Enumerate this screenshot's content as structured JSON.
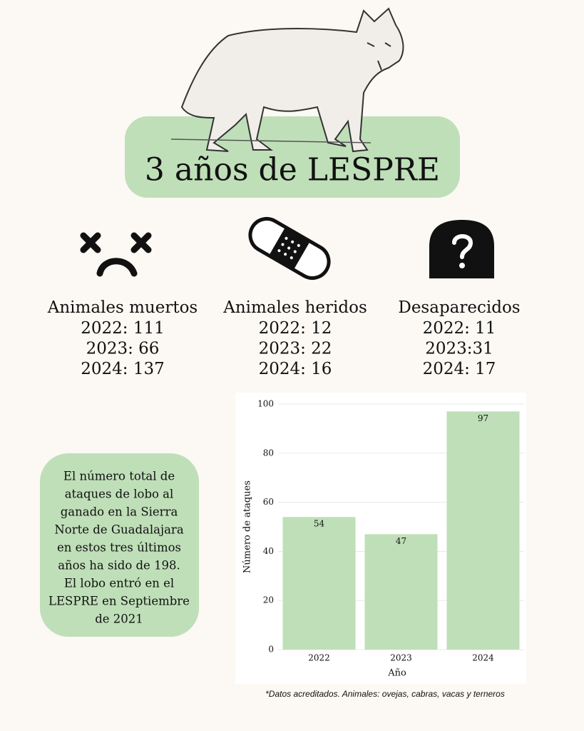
{
  "header": {
    "title": "3 años de LESPRE"
  },
  "stats": [
    {
      "label": "Animales muertos",
      "lines": [
        "2022: 111",
        "2023: 66",
        "2024: 137"
      ]
    },
    {
      "label": "Animales heridos",
      "lines": [
        "2022: 12",
        "2023: 22",
        "2024: 16"
      ]
    },
    {
      "label": "Desaparecidos",
      "lines": [
        "2022: 11",
        "2023:31",
        "2024: 17"
      ]
    }
  ],
  "note": {
    "lines": [
      "El número total de",
      "ataques de lobo al",
      "ganado en la Sierra",
      "Norte de Guadalajara",
      "en estos tres  últimos",
      "años  ha sido de  198.",
      "El lobo entró en el",
      "LESPRE en Septiembre",
      "de 2021"
    ]
  },
  "chart_data": {
    "type": "bar",
    "categories": [
      "2022",
      "2023",
      "2024"
    ],
    "values": [
      54,
      47,
      97
    ],
    "color": "#bfdfb8",
    "xlabel": "Año",
    "ylabel": "Número de ataques",
    "ylim": [
      0,
      100
    ],
    "yticks": [
      0,
      20,
      40,
      60,
      80,
      100
    ],
    "grid": true
  },
  "footnote": "*Datos acreditados. Animales: ovejas, cabras, vacas y terneros"
}
